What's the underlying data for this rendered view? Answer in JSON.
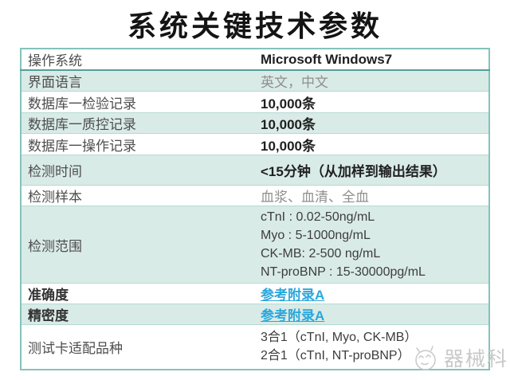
{
  "page": {
    "title": "系统关键技术参数"
  },
  "table": {
    "rows": [
      {
        "label": "操作系统",
        "value": "Microsoft Windows7",
        "style": "bold"
      },
      {
        "label": "界面语言",
        "value": "英文，中文",
        "style": "gray"
      },
      {
        "label": "数据库一检验记录",
        "value": "10,000条",
        "style": "bold"
      },
      {
        "label": "数据库一质控记录",
        "value": "10,000条",
        "style": "bold"
      },
      {
        "label": "数据库一操作记录",
        "value": "10,000条",
        "style": "bold"
      },
      {
        "label": "检测时间",
        "value": "<15分钟（从加样到输出结果）",
        "style": "bold"
      },
      {
        "label": "检测样本",
        "value": "血浆、血清、全血",
        "style": "gray"
      },
      {
        "label": "检测范围",
        "style": "multiline",
        "lines": [
          "cTnI : 0.02-50ng/mL",
          "Myo : 5-1000ng/mL",
          "CK-MB: 2-500 ng/mL",
          "NT-proBNP : 15-30000pg/mL"
        ]
      },
      {
        "label": "准确度",
        "value": "参考附录A",
        "style": "link",
        "label_bold": true
      },
      {
        "label": "精密度",
        "value": "参考附录A",
        "style": "link",
        "label_bold": true
      },
      {
        "label": "测试卡适配品种",
        "style": "multiline",
        "lines": [
          "3合1（cTnI, Myo, CK-MB）",
          "2合1（cTnI, NT-proBNP）"
        ]
      }
    ]
  },
  "watermark": {
    "icon": "mascot-face-icon",
    "text": "器械科"
  },
  "colors": {
    "table_border": "#84c3b9",
    "header_divider": "#55a096",
    "row_divider": "#b4dad3",
    "alt_row_bg": "#d9ebe7",
    "link_blue": "#2aa7dc",
    "value_dark": "#1f1f1f",
    "muted_gray": "#8f8f8f",
    "watermark_gray": "#c9c9c9"
  }
}
